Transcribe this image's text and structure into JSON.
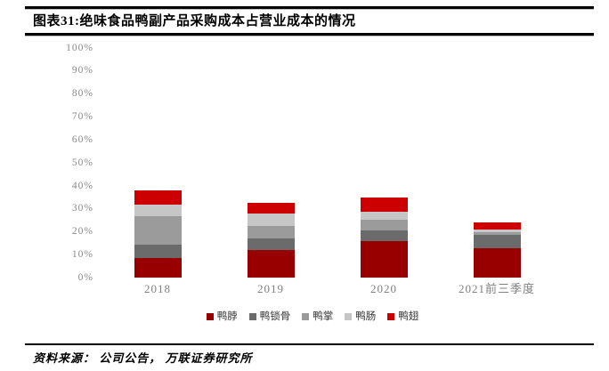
{
  "page": {
    "title": "图表31:绝味食品鸭副产品采购成本占营业成本的情况",
    "source": "资料来源： 公司公告， 万联证券研究所"
  },
  "chart_data": {
    "type": "bar",
    "stacked": true,
    "title": "",
    "categories": [
      "2018",
      "2019",
      "2020",
      "2021前三季度"
    ],
    "series": [
      {
        "name": "鸭脖",
        "color": "#980000",
        "values": [
          8.7,
          11.9,
          15.9,
          12.8
        ]
      },
      {
        "name": "鸭锁骨",
        "color": "#6B6B6B",
        "values": [
          5.5,
          5.1,
          4.8,
          5.6
        ]
      },
      {
        "name": "鸭掌",
        "color": "#9B9B9B",
        "values": [
          12.5,
          5.6,
          4.5,
          1.5
        ]
      },
      {
        "name": "鸭肠",
        "color": "#C6C6C6",
        "values": [
          4.9,
          5.1,
          3.6,
          1.1
        ]
      },
      {
        "name": "鸭翅",
        "color": "#CC0000",
        "values": [
          6.5,
          4.8,
          6.0,
          3.0
        ]
      }
    ],
    "totals": [
      38.1,
      32.5,
      34.8,
      24.0
    ],
    "xlabel": "",
    "ylabel": "",
    "ylim": [
      0,
      100
    ],
    "ytick_step": 10,
    "ytick_labels": [
      "0%",
      "10%",
      "20%",
      "30%",
      "40%",
      "50%",
      "60%",
      "70%",
      "80%",
      "90%",
      "100%"
    ],
    "grid": false,
    "legend_position": "bottom",
    "axis_label_color": "#8a8a8a",
    "legend_text_color": "#333333"
  }
}
